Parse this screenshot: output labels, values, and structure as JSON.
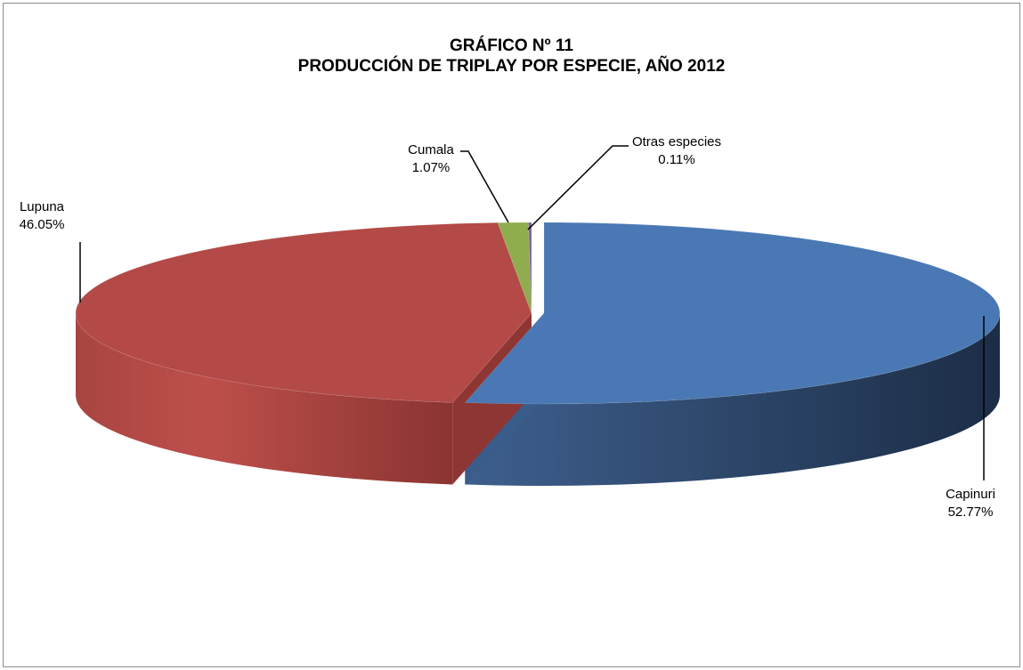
{
  "chart_data": {
    "type": "pie",
    "style": "3d-exploded",
    "title_line1": "GRÁFICO Nº 11",
    "title_line2": "PRODUCCIÓN DE TRIPLAY POR ESPECIE, AÑO 2012",
    "slices": [
      {
        "label": "Capinuri",
        "value": 52.77,
        "value_text": "52.77%",
        "color": "#4a78b4"
      },
      {
        "label": "Lupuna",
        "value": 46.05,
        "value_text": "46.05%",
        "color": "#b34a47"
      },
      {
        "label": "Cumala",
        "value": 1.07,
        "value_text": "1.07%",
        "color": "#8fad4e"
      },
      {
        "label": "Otras especies",
        "value": 0.11,
        "value_text": "0.11%",
        "color": "#7f63a2"
      }
    ],
    "legend": "none",
    "data_labels": "category-and-percent-with-leader-lines"
  }
}
